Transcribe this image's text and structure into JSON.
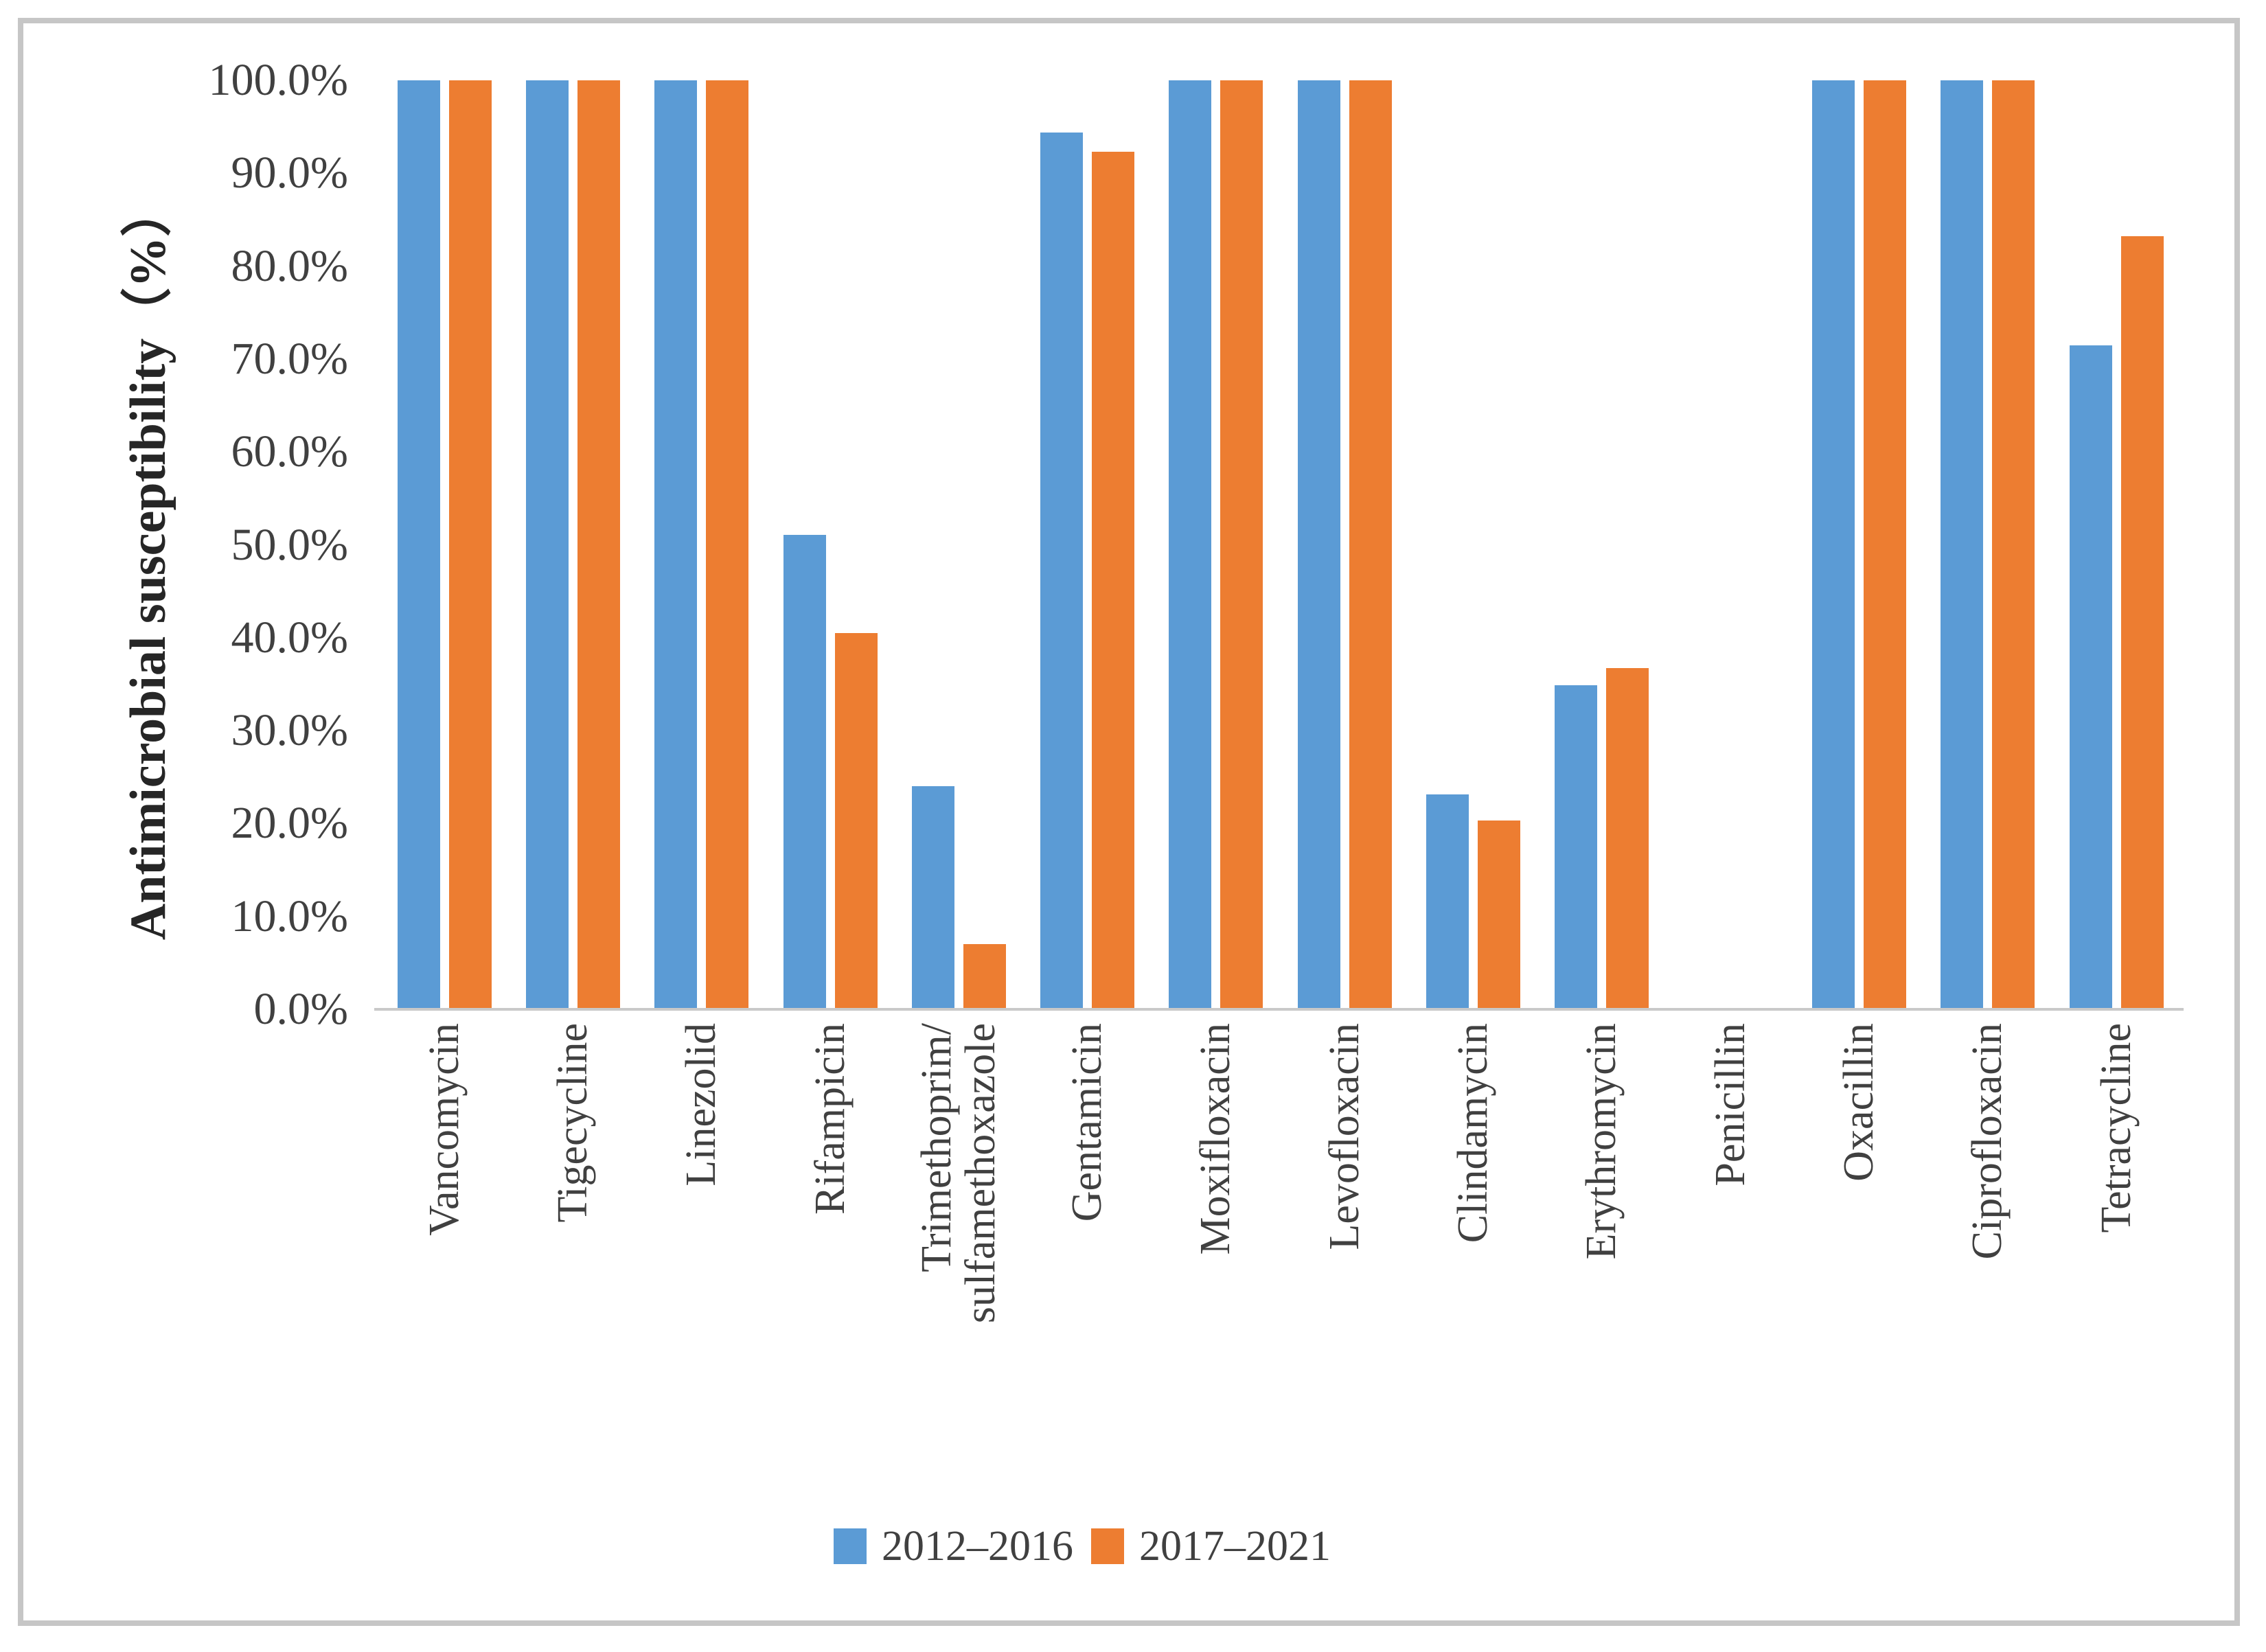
{
  "figure": {
    "background": "#ffffff",
    "border_color": "#c6c6c6"
  },
  "chart_data": {
    "type": "bar",
    "title": "",
    "xlabel": "",
    "ylabel": "Antimicrobial susceptibility（%）",
    "ylim": [
      0,
      100
    ],
    "grid": false,
    "legend_position": "bottom",
    "ytick_labels": [
      "100.0%",
      "90.0%",
      "80.0%",
      "70.0%",
      "60.0%",
      "50.0%",
      "40.0%",
      "30.0%",
      "20.0%",
      "10.0%",
      "0.0%"
    ],
    "ytick_values": [
      100,
      90,
      80,
      70,
      60,
      50,
      40,
      30,
      20,
      10,
      0
    ],
    "categories": [
      "Vancomycin",
      "Tigecycline",
      "Linezolid",
      "Rifampicin",
      "Trimethoprim/\nsulfamethoxazole",
      "Gentamicin",
      "Moxifloxacin",
      "Levofloxacin",
      "Clindamycin",
      "Erythromycin",
      "Penicillin",
      "Oxacillin",
      "Ciprofloxacin",
      "Tetracycline"
    ],
    "series": [
      {
        "name": "2012–2016",
        "color": "#5B9BD5",
        "values": [
          100,
          100,
          100,
          51.1,
          24.0,
          94.4,
          100,
          100,
          23.1,
          34.9,
          0,
          100,
          100,
          71.5
        ]
      },
      {
        "name": "2017–2021",
        "color": "#ED7D31",
        "values": [
          100,
          100,
          100,
          40.5,
          7.0,
          92.3,
          100,
          100,
          20.3,
          36.7,
          0,
          100,
          100,
          83.2
        ]
      }
    ],
    "axis_color": "#c9c9c9",
    "text_color": "#404040"
  }
}
